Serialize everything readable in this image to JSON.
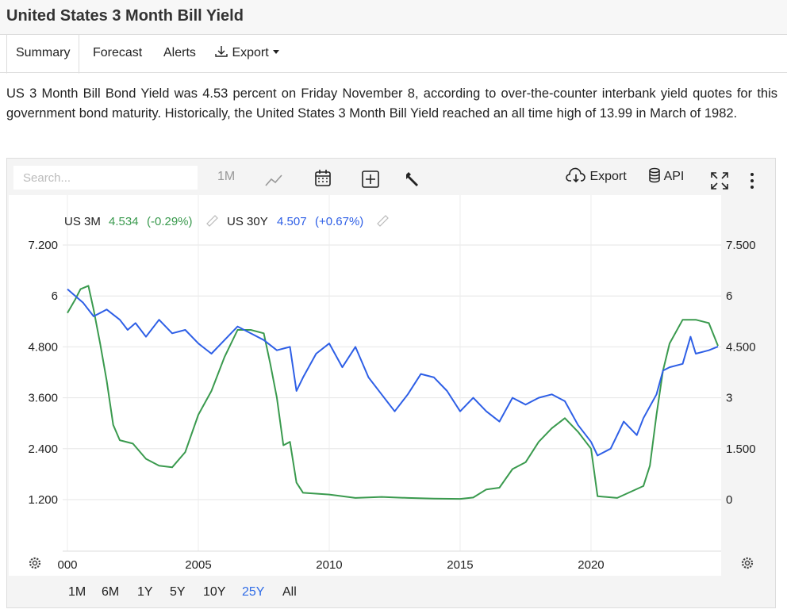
{
  "page": {
    "title": "United States 3 Month Bill Yield",
    "tabs": [
      {
        "label": "Summary"
      },
      {
        "label": "Forecast"
      },
      {
        "label": "Alerts"
      },
      {
        "label": "Export"
      }
    ],
    "summary": "US 3 Month Bill Bond Yield was 4.53 percent on Friday November 8, according to over-the-counter interbank yield quotes for this government bond maturity. Historically, the United States 3 Month Bill Yield reached an all time high of 13.99 in March of 1982."
  },
  "toolbar": {
    "search_placeholder": "Search...",
    "interval_label": "1M",
    "export_label": "Export",
    "api_label": "API"
  },
  "legend": {
    "s1_name": "US 3M",
    "s1_value": "4.534",
    "s1_change": "(-0.29%)",
    "s2_name": "US 30Y",
    "s2_value": "4.507",
    "s2_change": "(+0.67%)"
  },
  "range_buttons": [
    "1M",
    "6M",
    "1Y",
    "5Y",
    "10Y",
    "25Y",
    "All"
  ],
  "range_active": "25Y",
  "colors": {
    "us3m": "#3a9a4e",
    "us30y": "#2e5fe6",
    "accent": "#2e6be6"
  },
  "chart_data": {
    "type": "line",
    "x_ticks": [
      "000",
      "2005",
      "2010",
      "2015",
      "2020"
    ],
    "x_range": [
      2000,
      2024.85
    ],
    "left_axis": {
      "ticks": [
        "7.200",
        "6",
        "4.800",
        "3.600",
        "2.400",
        "1.200"
      ],
      "values": [
        7.2,
        6,
        4.8,
        3.6,
        2.4,
        1.2
      ]
    },
    "right_axis": {
      "ticks": [
        "7.500",
        "6",
        "4.500",
        "3",
        "1.500",
        "0"
      ],
      "values": [
        7.5,
        6,
        4.5,
        3,
        1.5,
        0
      ]
    },
    "grid": true,
    "series": [
      {
        "name": "US 3M",
        "axis": "right",
        "x": [
          2000,
          2000.3,
          2000.5,
          2000.8,
          2001,
          2001.25,
          2001.5,
          2001.75,
          2002,
          2002.5,
          2003,
          2003.5,
          2004,
          2004.5,
          2005,
          2005.5,
          2006,
          2006.5,
          2007,
          2007.5,
          2007.75,
          2008,
          2008.25,
          2008.5,
          2008.75,
          2009,
          2010,
          2011,
          2012,
          2013,
          2014,
          2015,
          2015.5,
          2016,
          2016.5,
          2017,
          2017.5,
          2018,
          2018.5,
          2019,
          2019.5,
          2020,
          2020.25,
          2021,
          2022,
          2022.25,
          2022.5,
          2022.75,
          2023,
          2023.5,
          2024,
          2024.5,
          2024.85
        ],
        "y": [
          5.5,
          5.9,
          6.2,
          6.3,
          5.6,
          4.6,
          3.5,
          2.2,
          1.75,
          1.65,
          1.2,
          1.0,
          0.95,
          1.4,
          2.5,
          3.2,
          4.2,
          5.0,
          5.0,
          4.9,
          4.0,
          3.0,
          1.6,
          1.7,
          0.5,
          0.2,
          0.15,
          0.05,
          0.08,
          0.05,
          0.03,
          0.02,
          0.06,
          0.3,
          0.35,
          0.9,
          1.1,
          1.7,
          2.1,
          2.4,
          2.0,
          1.5,
          0.1,
          0.05,
          0.4,
          1.0,
          2.5,
          3.8,
          4.6,
          5.3,
          5.3,
          5.2,
          4.53
        ]
      },
      {
        "name": "US 30Y",
        "axis": "right",
        "x": [
          2000,
          2000.3,
          2000.6,
          2001,
          2001.5,
          2002,
          2002.3,
          2002.6,
          2003,
          2003.5,
          2004,
          2004.5,
          2005,
          2005.5,
          2006,
          2006.5,
          2007,
          2007.5,
          2008,
          2008.5,
          2008.75,
          2009,
          2009.5,
          2010,
          2010.5,
          2011,
          2011.5,
          2012,
          2012.5,
          2013,
          2013.5,
          2014,
          2014.5,
          2015,
          2015.5,
          2016,
          2016.5,
          2017,
          2017.5,
          2018,
          2018.5,
          2019,
          2019.5,
          2020,
          2020.25,
          2020.75,
          2021,
          2021.25,
          2021.75,
          2022,
          2022.5,
          2022.75,
          2023,
          2023.5,
          2023.8,
          2024,
          2024.5,
          2024.85
        ],
        "y": [
          6.2,
          6.0,
          5.8,
          5.4,
          5.6,
          5.3,
          5.0,
          5.2,
          4.8,
          5.3,
          4.9,
          5.0,
          4.6,
          4.3,
          4.7,
          5.1,
          4.9,
          4.7,
          4.4,
          4.5,
          3.2,
          3.6,
          4.3,
          4.6,
          3.9,
          4.5,
          3.6,
          3.1,
          2.6,
          3.1,
          3.7,
          3.6,
          3.2,
          2.6,
          3.0,
          2.6,
          2.3,
          3.0,
          2.8,
          3.0,
          3.1,
          2.9,
          2.2,
          1.7,
          1.3,
          1.5,
          1.9,
          2.3,
          1.9,
          2.4,
          3.1,
          3.8,
          3.9,
          4.0,
          4.8,
          4.3,
          4.4,
          4.507
        ]
      }
    ]
  }
}
